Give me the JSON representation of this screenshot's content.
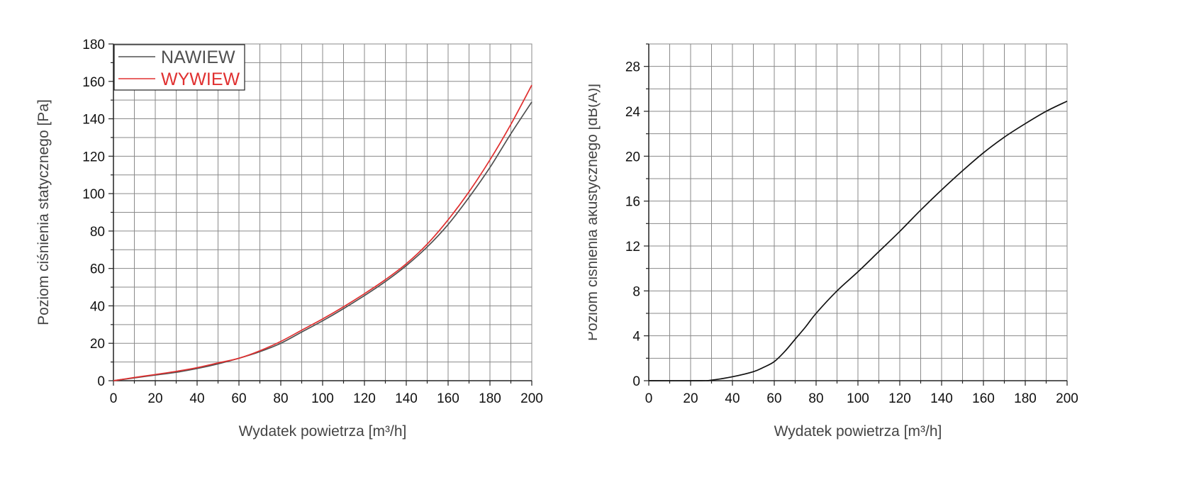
{
  "chart_data": [
    {
      "type": "line",
      "xlabel": "Wydatek powietrza [m³/h]",
      "ylabel": "Poziom ciśnienia statycznego [Pa]",
      "xlim": [
        0,
        200
      ],
      "ylim": [
        0,
        180
      ],
      "x_ticks": [
        0,
        20,
        40,
        60,
        80,
        100,
        120,
        140,
        160,
        180,
        200
      ],
      "y_ticks": [
        0,
        20,
        40,
        60,
        80,
        100,
        120,
        140,
        160,
        180
      ],
      "grid": true,
      "legend_position": "top-left",
      "series": [
        {
          "name": "NAWIEW",
          "color": "#505050",
          "x": [
            0,
            10,
            20,
            30,
            40,
            50,
            60,
            70,
            80,
            90,
            100,
            110,
            120,
            130,
            140,
            150,
            160,
            170,
            180,
            190,
            200
          ],
          "y": [
            0,
            1.5,
            3,
            4.5,
            6.5,
            9,
            12,
            15.5,
            20,
            26,
            32,
            38.5,
            45.5,
            53,
            61.5,
            71.5,
            83.5,
            98,
            114,
            132,
            149
          ]
        },
        {
          "name": "WYWIEW",
          "color": "#e03030",
          "x": [
            0,
            10,
            20,
            30,
            40,
            50,
            60,
            70,
            80,
            90,
            100,
            110,
            120,
            130,
            140,
            150,
            160,
            170,
            180,
            190,
            200
          ],
          "y": [
            0,
            1.7,
            3.3,
            5,
            7,
            9.5,
            12,
            16,
            21,
            27,
            33,
            39.5,
            46.5,
            54,
            62.5,
            73,
            86,
            101,
            118,
            137,
            158
          ]
        }
      ]
    },
    {
      "type": "line",
      "xlabel": "Wydatek powietrza [m³/h]",
      "ylabel": "Poziom ciśnienia akustycznego [dB(A)]",
      "xlim": [
        0,
        200
      ],
      "ylim": [
        0,
        30
      ],
      "x_ticks": [
        0,
        20,
        40,
        60,
        80,
        100,
        120,
        140,
        160,
        180,
        200
      ],
      "y_ticks": [
        0,
        4,
        8,
        12,
        16,
        20,
        24,
        28
      ],
      "grid": true,
      "series": [
        {
          "color": "#111111",
          "x": [
            0,
            25,
            30,
            40,
            50,
            55,
            60,
            65,
            70,
            75,
            80,
            90,
            100,
            110,
            120,
            130,
            140,
            150,
            160,
            170,
            180,
            190,
            200
          ],
          "y": [
            0,
            0,
            0.05,
            0.35,
            0.8,
            1.2,
            1.7,
            2.6,
            3.7,
            4.8,
            6,
            8,
            9.7,
            11.5,
            13.3,
            15.2,
            17,
            18.7,
            20.3,
            21.7,
            22.9,
            24,
            24.9
          ]
        }
      ]
    }
  ]
}
